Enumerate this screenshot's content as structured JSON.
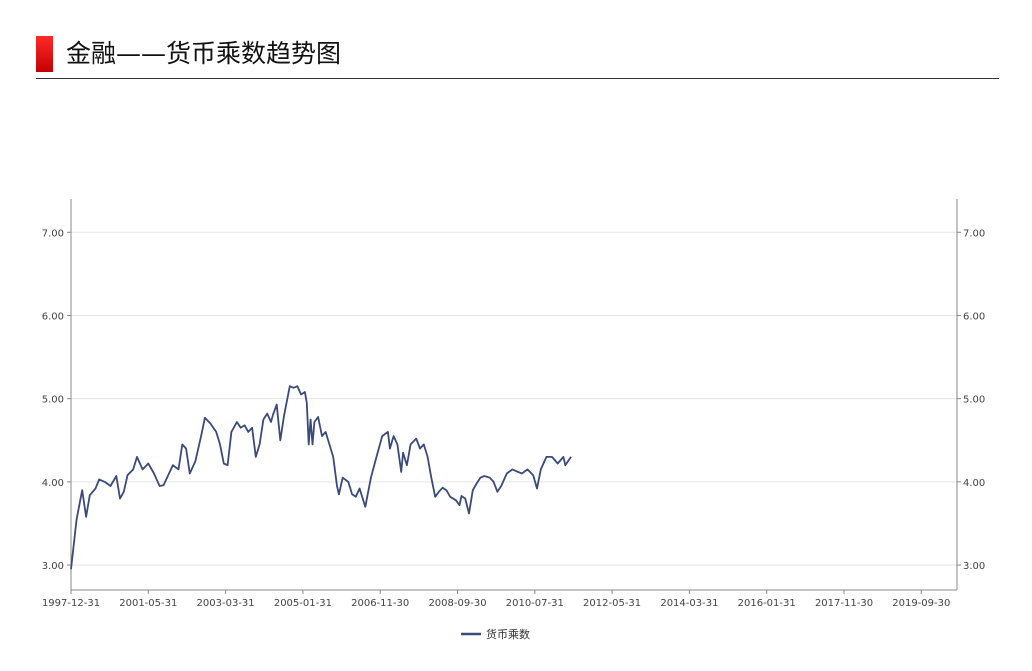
{
  "page": {
    "title": "金融——货币乘数趋势图"
  },
  "colors": {
    "accent": "#e00000",
    "series": "#3a4a7a",
    "grid": "#e6e6e6",
    "axis": "#888888"
  },
  "chart_data": {
    "type": "line",
    "title": "金融——货币乘数趋势图",
    "xlabel": "",
    "ylabel": "",
    "ylim": [
      2.7,
      7.4
    ],
    "xlim": [
      "1997-12-31",
      "2020-12-31"
    ],
    "yticks": [
      3.0,
      4.0,
      5.0,
      6.0,
      7.0
    ],
    "ytick_labels": [
      "3.00",
      "4.00",
      "5.00",
      "6.00",
      "7.00"
    ],
    "xticks": [
      "1997-12-31",
      "2001-05-31",
      "2003-03-31",
      "2005-01-31",
      "2006-11-30",
      "2008-09-30",
      "2010-07-31",
      "2012-05-31",
      "2014-03-31",
      "2016-01-31",
      "2017-11-30",
      "2019-09-30"
    ],
    "grid": true,
    "dual_y_axis": true,
    "legend_position": "bottom-center",
    "series": [
      {
        "name": "货币乘数",
        "points": [
          [
            "1997-12-31",
            2.95
          ],
          [
            "1998-03-31",
            3.55
          ],
          [
            "1998-06-30",
            3.9
          ],
          [
            "1998-08-31",
            3.58
          ],
          [
            "1998-10-31",
            3.84
          ],
          [
            "1999-01-31",
            3.92
          ],
          [
            "1999-03-31",
            4.03
          ],
          [
            "1999-06-30",
            4.0
          ],
          [
            "1999-09-30",
            3.95
          ],
          [
            "1999-12-31",
            4.07
          ],
          [
            "2000-02-29",
            3.8
          ],
          [
            "2000-04-30",
            3.88
          ],
          [
            "2000-06-30",
            4.08
          ],
          [
            "2000-09-30",
            4.15
          ],
          [
            "2000-11-30",
            4.3
          ],
          [
            "2001-02-28",
            4.15
          ],
          [
            "2001-05-31",
            4.22
          ],
          [
            "2001-08-31",
            4.1
          ],
          [
            "2001-11-30",
            3.95
          ],
          [
            "2002-01-31",
            3.96
          ],
          [
            "2002-04-30",
            4.1
          ],
          [
            "2002-06-30",
            4.2
          ],
          [
            "2002-09-30",
            4.15
          ],
          [
            "2002-11-30",
            4.45
          ],
          [
            "2003-01-31",
            4.4
          ],
          [
            "2003-03-31",
            4.1
          ],
          [
            "2003-06-30",
            4.25
          ],
          [
            "2003-09-30",
            4.55
          ],
          [
            "2003-11-30",
            4.77
          ],
          [
            "2004-02-29",
            4.7
          ],
          [
            "2004-05-31",
            4.6
          ],
          [
            "2004-07-31",
            4.45
          ],
          [
            "2004-09-30",
            4.22
          ],
          [
            "2004-11-30",
            4.2
          ],
          [
            "2005-01-31",
            4.6
          ],
          [
            "2005-04-30",
            4.72
          ],
          [
            "2005-06-30",
            4.65
          ],
          [
            "2005-08-31",
            4.68
          ],
          [
            "2005-10-31",
            4.6
          ],
          [
            "2005-12-31",
            4.65
          ],
          [
            "2006-02-28",
            4.3
          ],
          [
            "2006-04-30",
            4.45
          ],
          [
            "2006-06-30",
            4.75
          ],
          [
            "2006-08-31",
            4.82
          ],
          [
            "2006-10-31",
            4.72
          ],
          [
            "2006-11-30",
            4.8
          ],
          [
            "2007-01-31",
            4.93
          ],
          [
            "2007-03-31",
            4.5
          ],
          [
            "2007-05-31",
            4.8
          ],
          [
            "2007-08-31",
            5.15
          ],
          [
            "2007-10-31",
            5.13
          ],
          [
            "2007-12-31",
            5.15
          ],
          [
            "2008-02-29",
            5.05
          ],
          [
            "2008-04-30",
            5.08
          ],
          [
            "2008-05-31",
            4.95
          ],
          [
            "2008-06-30",
            4.45
          ],
          [
            "2008-07-31",
            4.75
          ],
          [
            "2008-08-31",
            4.45
          ],
          [
            "2008-09-30",
            4.72
          ],
          [
            "2008-11-30",
            4.78
          ],
          [
            "2009-01-31",
            4.55
          ],
          [
            "2009-03-31",
            4.6
          ],
          [
            "2009-05-31",
            4.45
          ],
          [
            "2009-07-31",
            4.3
          ],
          [
            "2009-09-30",
            3.95
          ],
          [
            "2009-10-31",
            3.85
          ],
          [
            "2009-12-31",
            4.05
          ],
          [
            "2010-03-31",
            4.0
          ],
          [
            "2010-05-31",
            3.85
          ],
          [
            "2010-07-31",
            3.82
          ],
          [
            "2010-09-30",
            3.92
          ],
          [
            "2010-12-31",
            3.7
          ],
          [
            "2011-03-31",
            4.05
          ],
          [
            "2011-06-30",
            4.3
          ],
          [
            "2011-09-30",
            4.55
          ],
          [
            "2011-12-31",
            4.6
          ],
          [
            "2012-01-31",
            4.4
          ],
          [
            "2012-03-31",
            4.55
          ],
          [
            "2012-05-31",
            4.45
          ],
          [
            "2012-07-31",
            4.12
          ],
          [
            "2012-08-31",
            4.35
          ],
          [
            "2012-10-31",
            4.2
          ],
          [
            "2012-12-31",
            4.45
          ],
          [
            "2013-03-31",
            4.52
          ],
          [
            "2013-05-31",
            4.4
          ],
          [
            "2013-07-31",
            4.45
          ],
          [
            "2013-09-30",
            4.3
          ],
          [
            "2013-11-30",
            4.05
          ],
          [
            "2014-01-31",
            3.82
          ],
          [
            "2014-03-31",
            3.88
          ],
          [
            "2014-05-31",
            3.93
          ],
          [
            "2014-07-31",
            3.9
          ],
          [
            "2014-09-30",
            3.82
          ],
          [
            "2014-12-31",
            3.78
          ],
          [
            "2015-02-28",
            3.72
          ],
          [
            "2015-03-31",
            3.83
          ],
          [
            "2015-05-31",
            3.8
          ],
          [
            "2015-07-31",
            3.62
          ],
          [
            "2015-09-30",
            3.9
          ],
          [
            "2015-11-30",
            3.98
          ],
          [
            "2016-01-31",
            4.05
          ],
          [
            "2016-03-31",
            4.07
          ],
          [
            "2016-06-30",
            4.05
          ],
          [
            "2016-08-31",
            4.0
          ],
          [
            "2016-10-31",
            3.88
          ],
          [
            "2016-12-31",
            3.95
          ],
          [
            "2017-03-31",
            4.1
          ],
          [
            "2017-06-30",
            4.15
          ],
          [
            "2017-09-30",
            4.12
          ],
          [
            "2017-11-30",
            4.1
          ],
          [
            "2018-02-28",
            4.15
          ],
          [
            "2018-05-31",
            4.08
          ],
          [
            "2018-07-31",
            3.92
          ],
          [
            "2018-09-30",
            4.15
          ],
          [
            "2018-12-31",
            4.3
          ],
          [
            "2019-03-31",
            4.3
          ],
          [
            "2019-06-30",
            4.22
          ],
          [
            "2019-09-30",
            4.3
          ],
          [
            "2019-10-31",
            4.2
          ],
          [
            "2020-01-31",
            4.3
          ]
        ]
      }
    ]
  },
  "legend": {
    "items": [
      {
        "label": "货币乘数"
      }
    ]
  }
}
